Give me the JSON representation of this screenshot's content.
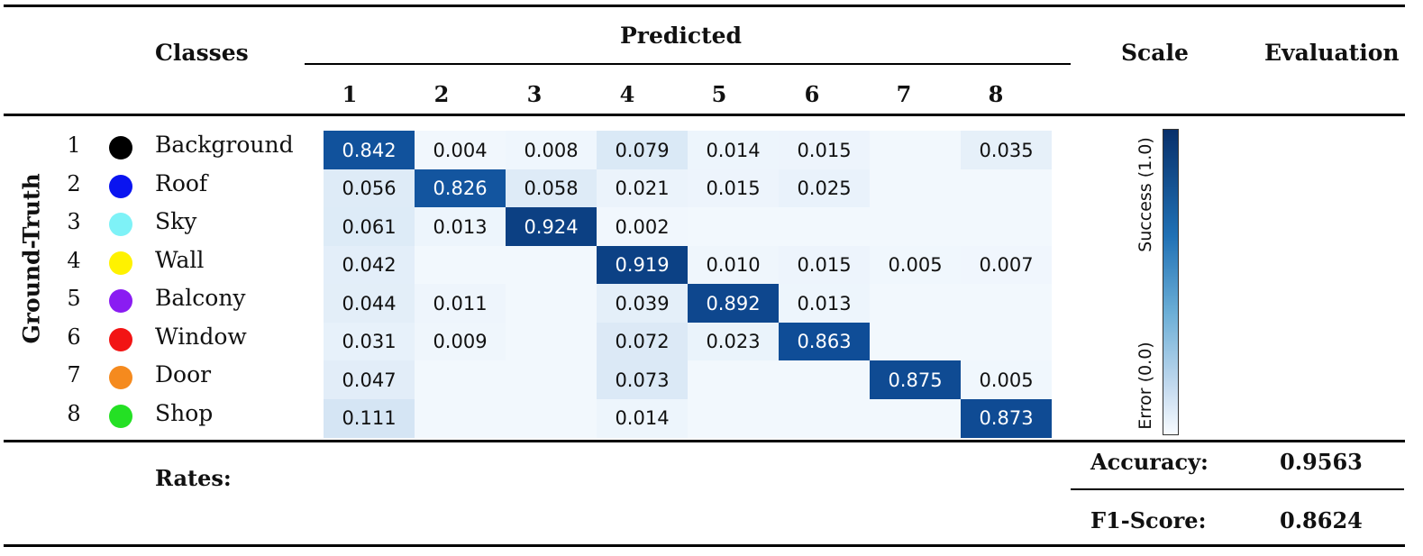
{
  "header": {
    "classes_label": "Classes",
    "predicted_label": "Predicted",
    "scale_label": "Scale",
    "evaluation_label": "Evaluation",
    "ground_truth_label": "Ground-Truth"
  },
  "classes": [
    {
      "num": "1",
      "name": "Background",
      "color": "#000000"
    },
    {
      "num": "2",
      "name": "Roof",
      "color": "#0a14f0"
    },
    {
      "num": "3",
      "name": "Sky",
      "color": "#7ef2f7"
    },
    {
      "num": "4",
      "name": "Wall",
      "color": "#fff200"
    },
    {
      "num": "5",
      "name": "Balcony",
      "color": "#8a1cf2"
    },
    {
      "num": "6",
      "name": "Window",
      "color": "#f21414"
    },
    {
      "num": "7",
      "name": "Door",
      "color": "#f58a1e"
    },
    {
      "num": "8",
      "name": "Shop",
      "color": "#24e024"
    }
  ],
  "scale": {
    "top_label": "Success (1.0)",
    "bottom_label": "Error (0.0)",
    "color_high": "#08306b",
    "color_low": "#f7fbff"
  },
  "rates": {
    "label": "Rates:",
    "accuracy_label": "Accuracy:",
    "accuracy_value": "0.9563",
    "f1_label": "F1-Score:",
    "f1_value": "0.8624"
  },
  "chart_data": {
    "type": "heatmap",
    "xlabel": "Predicted",
    "ylabel": "Ground-Truth",
    "x_categories": [
      "1",
      "2",
      "3",
      "4",
      "5",
      "6",
      "7",
      "8"
    ],
    "y_categories": [
      "1",
      "2",
      "3",
      "4",
      "5",
      "6",
      "7",
      "8"
    ],
    "values": [
      [
        "0.842",
        "0.004",
        "0.008",
        "0.079",
        "0.014",
        "0.015",
        "",
        "0.035"
      ],
      [
        "0.056",
        "0.826",
        "0.058",
        "0.021",
        "0.015",
        "0.025",
        "",
        ""
      ],
      [
        "0.061",
        "0.013",
        "0.924",
        "0.002",
        "",
        "",
        "",
        ""
      ],
      [
        "0.042",
        "",
        "",
        "0.919",
        "0.010",
        "0.015",
        "0.005",
        "0.007"
      ],
      [
        "0.044",
        "0.011",
        "",
        "0.039",
        "0.892",
        "0.013",
        "",
        ""
      ],
      [
        "0.031",
        "0.009",
        "",
        "0.072",
        "0.023",
        "0.863",
        "",
        ""
      ],
      [
        "0.047",
        "",
        "",
        "0.073",
        "",
        "",
        "0.875",
        "0.005"
      ],
      [
        "0.111",
        "",
        "",
        "0.014",
        "",
        "",
        "",
        "0.873"
      ]
    ],
    "range": [
      0,
      1
    ]
  }
}
